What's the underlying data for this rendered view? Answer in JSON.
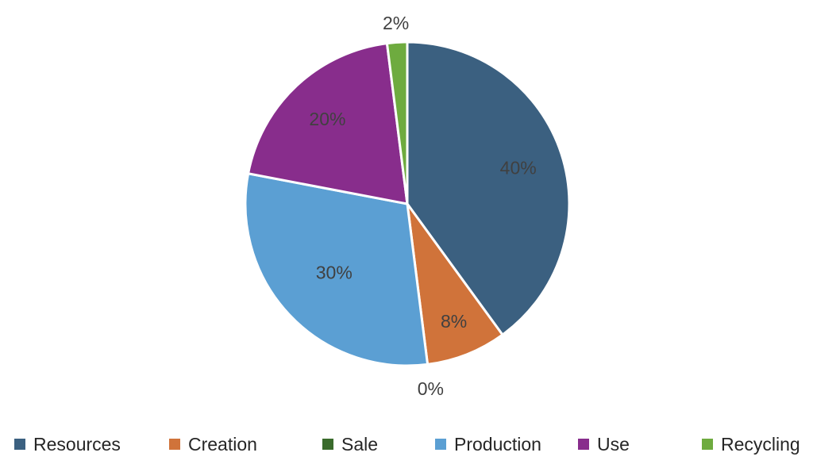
{
  "chart_data": {
    "type": "pie",
    "categories": [
      "Resources",
      "Creation",
      "Sale",
      "Production",
      "Use",
      "Recycling"
    ],
    "values": [
      40,
      8,
      0,
      30,
      20,
      2
    ],
    "data_labels": [
      "40%",
      "8%",
      "0%",
      "30%",
      "20%",
      "2%"
    ],
    "colors": [
      "#3b6080",
      "#d0733a",
      "#3a6b2c",
      "#5b9fd3",
      "#882d8c",
      "#6eab3f"
    ],
    "title": "",
    "legend_position": "bottom",
    "start_angle_deg": 0,
    "direction": "clockwise"
  }
}
